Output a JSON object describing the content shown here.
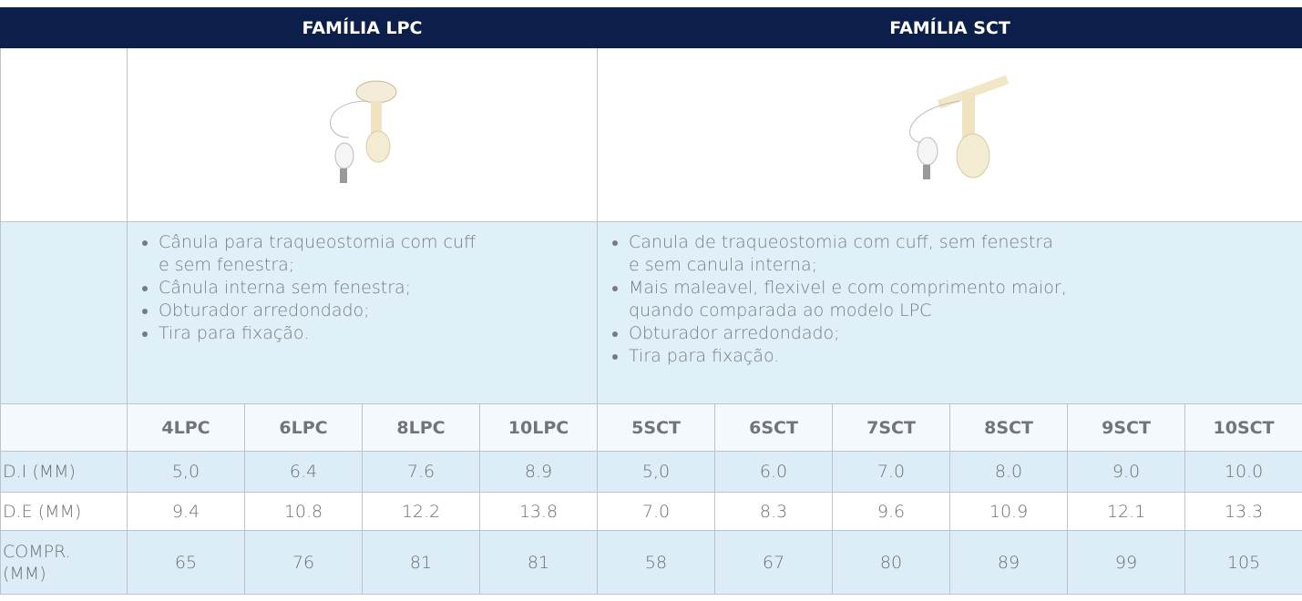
{
  "header": {
    "lpc": "FAMÍLIA LPC",
    "sct": "FAMÍLIA SCT"
  },
  "descriptions": {
    "lpc": [
      "Cânula para traqueostomia com cuff\ne sem fenestra;",
      "Cânula interna sem fenestra;",
      "Obturador arredondado;",
      "Tira para fixação."
    ],
    "sct": [
      "Canula de traqueostomia com cuff, sem fenestra\ne sem canula interna;",
      "Mais maleavel, flexivel e com comprimento maior,\nquando  comparada ao modelo LPC",
      "Obturador arredondado;",
      "Tira para fixação."
    ]
  },
  "table": {
    "columns": [
      "4LPC",
      "6LPC",
      "8LPC",
      "10LPC",
      "5SCT",
      "6SCT",
      "7SCT",
      "8SCT",
      "9SCT",
      "10SCT"
    ],
    "rows": [
      {
        "label": "D.I (MM)",
        "values": [
          "5,0",
          "6.4",
          "7.6",
          "8.9",
          "5,0",
          "6.0",
          "7.0",
          "8.0",
          "9.0",
          "10.0"
        ]
      },
      {
        "label": "D.E (MM)",
        "values": [
          "9.4",
          "10.8",
          "12.2",
          "13.8",
          "7.0",
          "8.3",
          "9.6",
          "10.9",
          "12.1",
          "13.3"
        ]
      },
      {
        "label": "COMPR.\n(MM)",
        "values": [
          "65",
          "76",
          "81",
          "81",
          "58",
          "67",
          "80",
          "89",
          "99",
          "105"
        ]
      }
    ]
  }
}
